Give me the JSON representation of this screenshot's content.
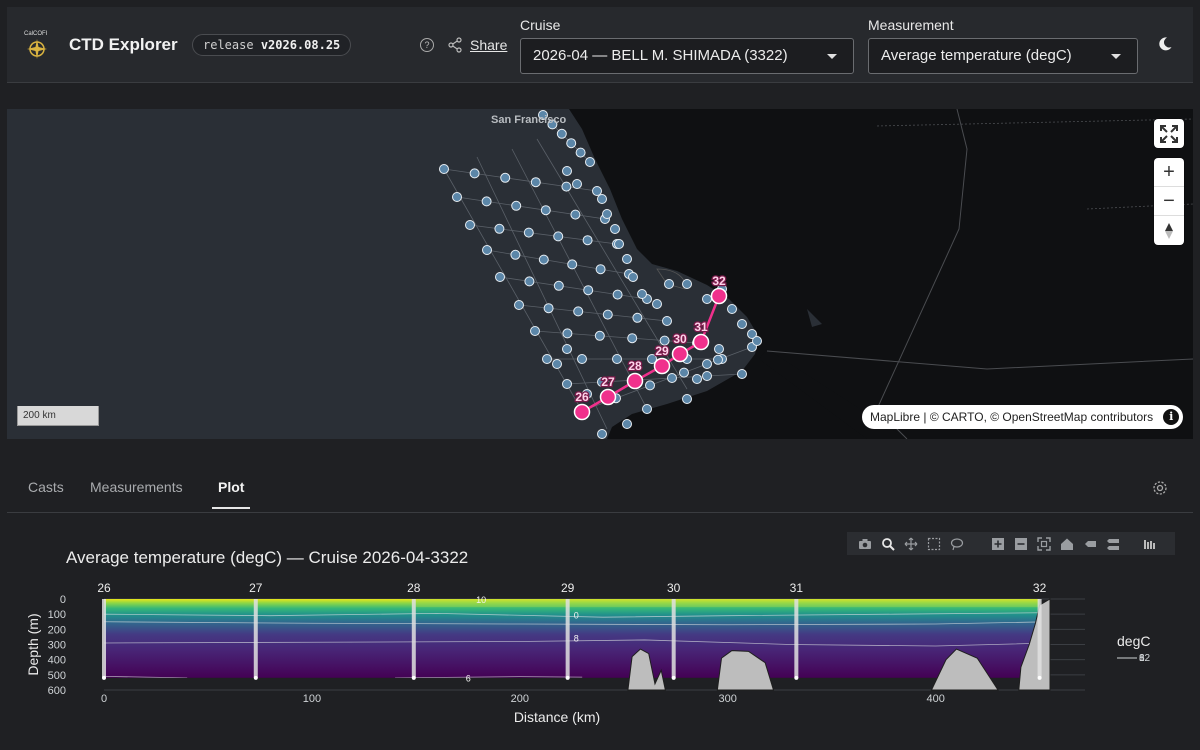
{
  "header": {
    "app_title": "CTD Explorer",
    "release_prefix": "release",
    "release_version": "v2026.08.25",
    "share_label": "Share",
    "cruise_label": "Cruise",
    "cruise_value": "2026-04 — BELL M. SHIMADA (3322)",
    "measurement_label": "Measurement",
    "measurement_value": "Average temperature (degC)",
    "icons": [
      "calcofi-logo",
      "help-icon",
      "share-icon",
      "caret-down-icon",
      "moon-icon"
    ]
  },
  "map": {
    "city_label": "San Francisco",
    "scale_label": "200 km",
    "attribution": {
      "maplibre": "MapLibre",
      "sep1": " | © ",
      "carto": "CARTO",
      "sep2": ", © ",
      "osm": "OpenStreetMap",
      "contributors": " contributors"
    },
    "info_label": "i",
    "highlight_color": "#f0308c",
    "station_color": "#5b86a8",
    "selected_stations": [
      {
        "label": "26"
      },
      {
        "label": "27"
      },
      {
        "label": "28"
      },
      {
        "label": "29"
      },
      {
        "label": "30"
      },
      {
        "label": "31"
      },
      {
        "label": "32"
      }
    ]
  },
  "tabs": [
    {
      "label": "Casts",
      "active": false
    },
    {
      "label": "Measurements",
      "active": false
    },
    {
      "label": "Plot",
      "active": true
    }
  ],
  "chart_data": {
    "type": "heatmap",
    "title": "Average temperature (degC) — Cruise 2026-04-3322",
    "xlabel": "Distance (km)",
    "ylabel": "Depth (m)",
    "xlim": [
      0,
      455
    ],
    "ylim": [
      600,
      0
    ],
    "x_ticks": [
      0,
      100,
      200,
      300,
      400
    ],
    "y_ticks": [
      0,
      100,
      200,
      300,
      400,
      500,
      600
    ],
    "colorscale": "viridis",
    "legend_title": "degC",
    "legend_entries": [
      "12",
      "8",
      "6"
    ],
    "stations": [
      {
        "label": "26",
        "x": 0
      },
      {
        "label": "27",
        "x": 73
      },
      {
        "label": "28",
        "x": 149
      },
      {
        "label": "29",
        "x": 223
      },
      {
        "label": "30",
        "x": 274
      },
      {
        "label": "31",
        "x": 333
      },
      {
        "label": "32",
        "x": 450
      }
    ],
    "contour_labels": [
      {
        "text": "10",
        "x": 178,
        "depth": 5
      },
      {
        "text": "0",
        "x": 225,
        "depth": 110
      },
      {
        "text": "8",
        "x": 225,
        "depth": 260
      },
      {
        "text": "6",
        "x": 173,
        "depth": 525
      }
    ],
    "max_depth_sampled": 520
  }
}
